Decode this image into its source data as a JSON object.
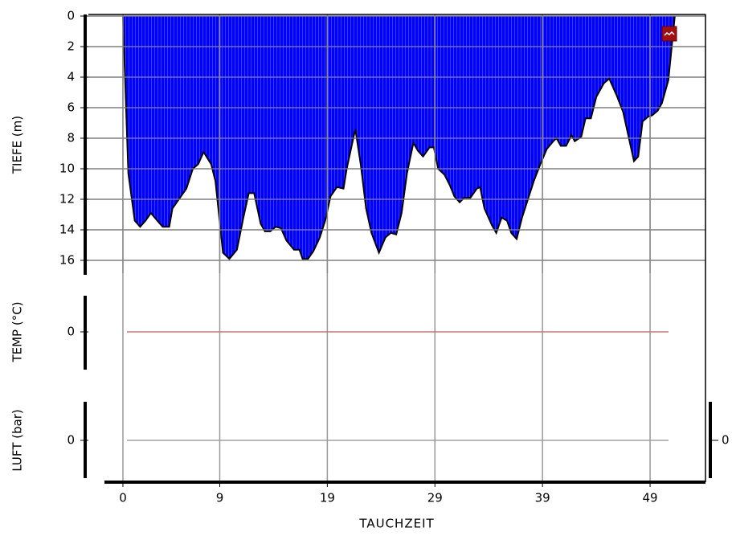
{
  "chart_data": {
    "type": "area",
    "x_label": "TAUCHZEIT",
    "xlim": [
      -3.21,
      54.15
    ],
    "xticks": [
      0,
      9,
      19,
      29,
      39,
      49
    ],
    "grid": true,
    "color": "#0000ff",
    "depth": {
      "label": "TIEFE (m)",
      "ylim": [
        0,
        16.8
      ],
      "inverted": true,
      "yticks": [
        0,
        2,
        4,
        6,
        8,
        10,
        12,
        14,
        16
      ],
      "x": [
        0,
        0.5,
        1.1,
        1.6,
        2.1,
        2.6,
        3.2,
        3.7,
        4.3,
        4.6,
        5.4,
        5.9,
        6.5,
        7.0,
        7.5,
        8.2,
        8.6,
        9.3,
        9.9,
        10.6,
        11.2,
        11.7,
        12.2,
        12.8,
        13.2,
        13.7,
        14.2,
        14.7,
        15.2,
        15.9,
        16.4,
        16.7,
        17.2,
        17.7,
        18.3,
        18.8,
        19.3,
        19.9,
        20.5,
        20.8,
        21.6,
        22.1,
        22.6,
        23.1,
        23.8,
        24.4,
        24.9,
        25.4,
        25.9,
        26.4,
        27.0,
        27.4,
        27.9,
        28.5,
        28.9,
        29.3,
        29.9,
        30.4,
        30.8,
        31.3,
        31.7,
        32.3,
        32.9,
        33.2,
        33.6,
        34.3,
        34.7,
        35.2,
        35.7,
        36.1,
        36.6,
        37.1,
        37.6,
        38.2,
        38.8,
        39.4,
        40.0,
        40.3,
        40.7,
        41.2,
        41.7,
        42.0,
        42.6,
        43.0,
        43.5,
        44.0,
        44.7,
        45.2,
        45.9,
        46.5,
        47.0,
        47.5,
        47.9,
        48.3,
        48.8,
        49.2,
        49.7,
        50.1,
        50.7,
        51.0,
        51.3
      ],
      "values": [
        0,
        10.3,
        13.4,
        13.8,
        13.4,
        12.9,
        13.4,
        13.8,
        13.8,
        12.6,
        11.8,
        11.3,
        10.0,
        9.7,
        8.9,
        9.7,
        10.8,
        15.5,
        15.9,
        15.3,
        13.2,
        11.6,
        11.6,
        13.6,
        14.1,
        14.1,
        13.8,
        13.9,
        14.7,
        15.3,
        15.3,
        15.9,
        15.9,
        15.4,
        14.5,
        13.4,
        11.8,
        11.2,
        11.3,
        10.0,
        7.4,
        9.7,
        12.6,
        14.2,
        15.5,
        14.5,
        14.2,
        14.3,
        12.9,
        10.3,
        8.3,
        8.8,
        9.2,
        8.6,
        8.6,
        10.0,
        10.4,
        11.1,
        11.8,
        12.2,
        11.9,
        11.9,
        11.3,
        11.2,
        12.6,
        13.7,
        14.2,
        13.2,
        13.4,
        14.2,
        14.6,
        13.2,
        12.1,
        10.8,
        9.7,
        8.7,
        8.2,
        8.0,
        8.5,
        8.5,
        7.8,
        8.2,
        7.9,
        6.7,
        6.7,
        5.3,
        4.4,
        4.1,
        5.2,
        6.3,
        7.9,
        9.5,
        9.2,
        6.9,
        6.6,
        6.5,
        6.2,
        5.7,
        4.2,
        2.1,
        0
      ]
    },
    "temp": {
      "label": "TEMP (°C)",
      "ylim": [
        -1,
        1
      ],
      "yticks": [
        0
      ],
      "color": "#c87878"
    },
    "air": {
      "label": "LUFT (bar)",
      "ylim": [
        -1,
        1
      ],
      "yticks": [
        0
      ],
      "y2ticks": [
        0
      ],
      "color": "#a0a0a0"
    }
  }
}
